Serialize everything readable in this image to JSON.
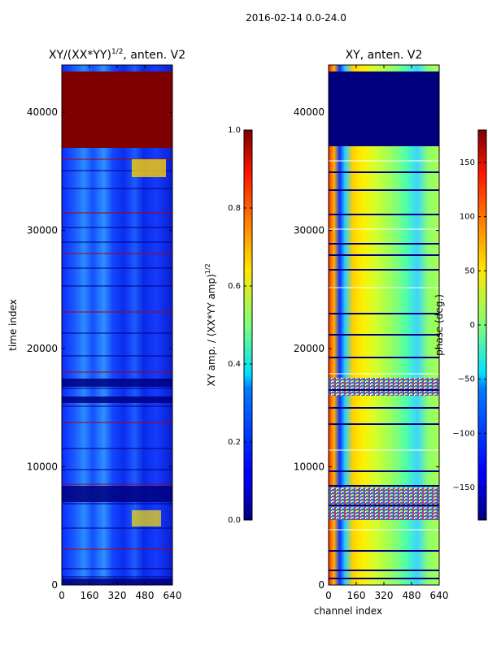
{
  "figure": {
    "suptitle": "2016-02-14 0.0-24.0"
  },
  "chart_data": [
    {
      "type": "heatmap",
      "title": "XY/(XX*YY)",
      "title_exponent": "1/2",
      "title_suffix": ", anten. V2",
      "xlabel": "",
      "ylabel": "time index",
      "xlim": [
        0,
        640
      ],
      "ylim": [
        0,
        44000
      ],
      "x_ticks": [
        0,
        160,
        320,
        480,
        640
      ],
      "y_ticks": [
        0,
        10000,
        20000,
        30000,
        40000
      ],
      "colorbar": {
        "label": "XY amp. / (XX*YY amp)",
        "label_exponent": "1/2",
        "range": [
          0.0,
          1.0
        ],
        "ticks": [
          "0.0",
          "0.2",
          "0.4",
          "0.6",
          "0.8",
          "1.0"
        ],
        "colormap": "jet"
      },
      "description_values": {
        "saturated_band_time": [
          37000,
          44000
        ],
        "typical_value": 0.2
      }
    },
    {
      "type": "heatmap",
      "title": "XY, anten. V2",
      "xlabel": "channel index",
      "ylabel": "",
      "xlim": [
        0,
        640
      ],
      "ylim": [
        0,
        44000
      ],
      "x_ticks": [
        0,
        160,
        320,
        480,
        640
      ],
      "y_ticks": [
        0,
        10000,
        20000,
        30000,
        40000
      ],
      "colorbar": {
        "label": "phase (deg.)",
        "range": [
          -180,
          180
        ],
        "ticks": [
          "−150",
          "−100",
          "−50",
          "0",
          "50",
          "100",
          "150"
        ],
        "tick_values": [
          -150,
          -100,
          -50,
          0,
          50,
          100,
          150
        ],
        "colormap": "jet"
      }
    }
  ]
}
